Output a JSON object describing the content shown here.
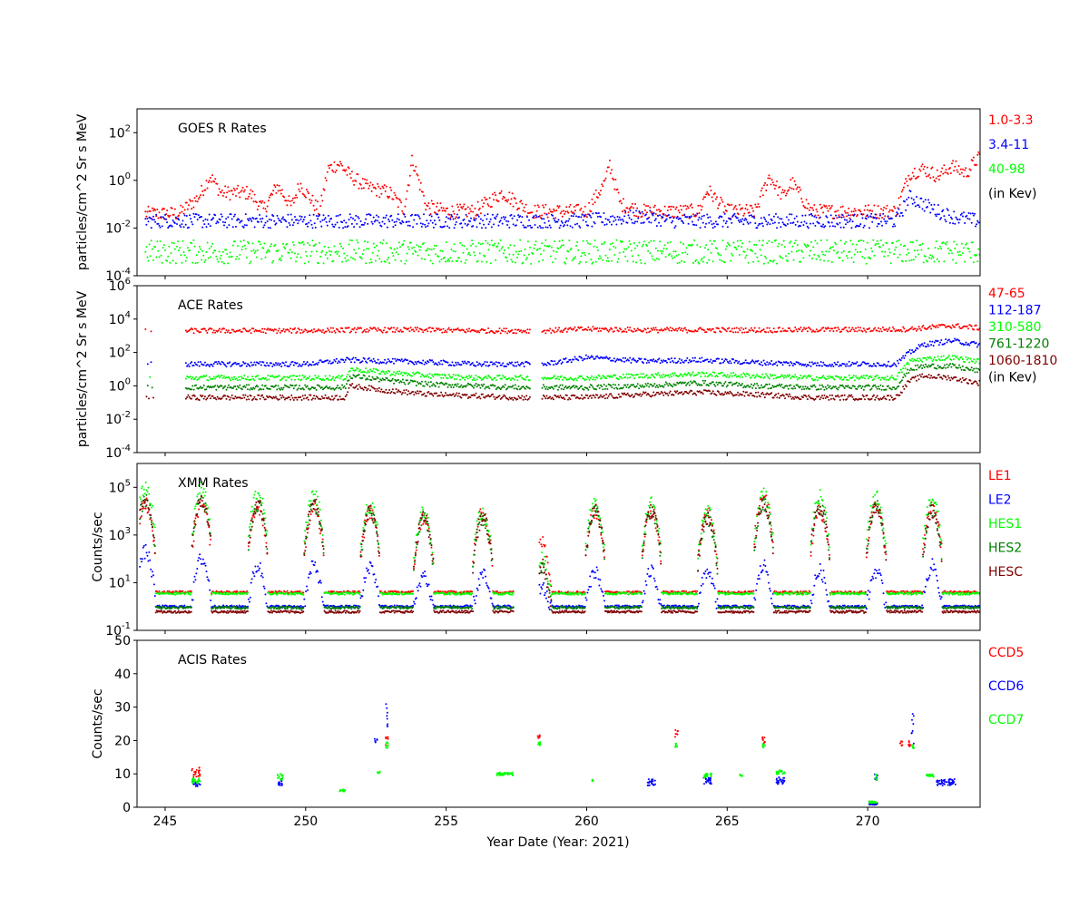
{
  "xlabel": "Year Date (Year: 2021)",
  "chart_data": [
    {
      "type": "scatter",
      "title": "GOES R Rates",
      "ylabel": "particles/cm^2 Sr s MeV",
      "yscale": "log",
      "ylim": [
        0.0001,
        1000
      ],
      "xlim": [
        244,
        274
      ],
      "xticks": [
        245,
        250,
        255,
        260,
        265,
        270
      ],
      "yticks": [
        {
          "exp": "-4",
          "v": 0.0001
        },
        {
          "exp": "-2",
          "v": 0.01
        },
        {
          "exp": "0",
          "v": 1
        },
        {
          "exp": "2",
          "v": 100
        }
      ],
      "legend_unit": "(in Kev)",
      "series": [
        {
          "name": "1.0-3.3",
          "color": "#ff0000",
          "x": [
            244.5,
            245.5,
            246.2,
            246.6,
            247,
            248,
            248.5,
            249,
            249.5,
            249.8,
            250.5,
            250.8,
            251.2,
            251.6,
            252.2,
            253,
            253.5,
            253.8,
            254.3,
            255,
            256,
            257,
            258,
            259,
            260,
            260.7,
            260.8,
            261.2,
            262,
            263,
            264,
            264.3,
            265,
            266,
            266.5,
            267,
            267.3,
            268,
            268.5,
            269,
            270,
            271,
            271.5,
            272,
            272.5,
            273,
            273.5,
            273.9
          ],
          "y": [
            0.04,
            0.04,
            0.2,
            1.5,
            0.3,
            0.3,
            0.06,
            0.6,
            0.08,
            0.7,
            0.05,
            3,
            5,
            1.5,
            0.5,
            0.3,
            0.06,
            8,
            0.08,
            0.05,
            0.05,
            0.3,
            0.05,
            0.05,
            0.05,
            1,
            6,
            0.1,
            0.05,
            0.05,
            0.05,
            0.4,
            0.05,
            0.05,
            1.5,
            0.2,
            0.8,
            0.05,
            0.05,
            0.05,
            0.05,
            0.05,
            2,
            3,
            1.5,
            4,
            2,
            8
          ]
        },
        {
          "name": "3.4-11",
          "color": "#0000ff",
          "x": [
            244.5,
            246,
            248,
            250,
            252,
            254,
            256,
            258,
            260,
            262,
            263,
            264,
            266,
            268,
            270,
            271,
            271.5,
            272,
            272.5,
            273,
            273.9
          ],
          "y": [
            0.02,
            0.02,
            0.02,
            0.02,
            0.02,
            0.02,
            0.02,
            0.02,
            0.02,
            0.03,
            0.02,
            0.02,
            0.02,
            0.02,
            0.02,
            0.02,
            0.2,
            0.1,
            0.05,
            0.03,
            0.02
          ]
        },
        {
          "name": "40-98",
          "color": "#00ff00",
          "x": [
            244.5,
            246,
            248,
            250,
            252,
            254,
            256,
            258,
            260,
            262,
            264,
            266,
            268,
            270,
            272,
            273.9
          ],
          "y": [
            0.001,
            0.001,
            0.001,
            0.001,
            0.001,
            0.001,
            0.001,
            0.001,
            0.001,
            0.001,
            0.001,
            0.001,
            0.001,
            0.001,
            0.001,
            0.001
          ]
        }
      ]
    },
    {
      "type": "scatter",
      "title": "ACE Rates",
      "ylabel": "particles/cm^2 Sr s MeV",
      "yscale": "log",
      "ylim": [
        0.0001,
        1000000
      ],
      "xlim": [
        244,
        274
      ],
      "xticks": [
        245,
        250,
        255,
        260,
        265,
        270
      ],
      "yticks": [
        {
          "exp": "-4",
          "v": 0.0001
        },
        {
          "exp": "-2",
          "v": 0.01
        },
        {
          "exp": "0",
          "v": 1
        },
        {
          "exp": "2",
          "v": 100
        },
        {
          "exp": "4",
          "v": 10000
        },
        {
          "exp": "6",
          "v": 1000000
        }
      ],
      "legend_unit": "(in Kev)",
      "series": [
        {
          "name": "47-65",
          "color": "#ff0000",
          "x": [
            244.3,
            246,
            248,
            250,
            251.5,
            253,
            254.5,
            256,
            257.5,
            258.5,
            260,
            262,
            264,
            266,
            268,
            270,
            271.5,
            272,
            273,
            273.9
          ],
          "y": [
            2000,
            2000,
            2000,
            2000,
            2200,
            2200,
            2200,
            2000,
            2000,
            2000,
            2500,
            2200,
            2200,
            2200,
            2300,
            2300,
            2500,
            3000,
            4000,
            3000
          ]
        },
        {
          "name": "112-187",
          "color": "#0000ff",
          "x": [
            244.3,
            246,
            248,
            250,
            251.5,
            253,
            254.5,
            256,
            257.5,
            258.5,
            260,
            262,
            264,
            266,
            268,
            270,
            271,
            271.5,
            272,
            273,
            273.9
          ],
          "y": [
            20,
            20,
            20,
            20,
            35,
            30,
            25,
            20,
            20,
            20,
            50,
            30,
            35,
            25,
            20,
            20,
            20,
            100,
            300,
            500,
            300
          ]
        },
        {
          "name": "310-580",
          "color": "#00ff00",
          "x": [
            244.3,
            246,
            248,
            250,
            251.4,
            251.6,
            253,
            254.5,
            256,
            257.5,
            258.5,
            260,
            262,
            264,
            266,
            268,
            270,
            271,
            271.5,
            272,
            273,
            273.9
          ],
          "y": [
            3,
            3,
            3,
            3,
            3,
            10,
            6,
            4,
            3,
            3,
            3,
            3,
            4,
            5,
            4,
            3,
            3,
            3,
            30,
            40,
            50,
            30
          ]
        },
        {
          "name": "761-1220",
          "color": "#008000",
          "x": [
            244.3,
            246,
            248,
            250,
            251.4,
            251.6,
            253,
            254.5,
            256,
            257.5,
            258.5,
            260,
            262,
            264,
            266,
            268,
            270,
            271,
            271.5,
            272,
            273,
            273.9
          ],
          "y": [
            0.8,
            0.8,
            0.8,
            0.8,
            0.8,
            4,
            2,
            1.2,
            1,
            0.8,
            0.8,
            0.8,
            1,
            1.5,
            1,
            0.8,
            0.8,
            0.8,
            10,
            15,
            15,
            8
          ]
        },
        {
          "name": "1060-1810",
          "color": "#800000",
          "x": [
            244.3,
            246,
            248,
            250,
            251.4,
            251.6,
            253,
            254.5,
            256,
            257.5,
            258.5,
            260,
            262,
            264,
            266,
            268,
            270,
            271,
            271.5,
            272,
            273,
            273.9
          ],
          "y": [
            0.2,
            0.2,
            0.2,
            0.2,
            0.2,
            1,
            0.5,
            0.3,
            0.25,
            0.2,
            0.2,
            0.2,
            0.3,
            0.4,
            0.3,
            0.2,
            0.2,
            0.2,
            2,
            4,
            3,
            1.5
          ]
        }
      ]
    },
    {
      "type": "scatter",
      "title": "XMM Rates",
      "ylabel": "Counts/sec",
      "yscale": "log",
      "ylim": [
        0.1,
        1000000
      ],
      "xlim": [
        244,
        274
      ],
      "xticks": [
        245,
        250,
        255,
        260,
        265,
        270
      ],
      "yticks": [
        {
          "exp": "-1",
          "v": 0.1
        },
        {
          "exp": "1",
          "v": 10
        },
        {
          "exp": "3",
          "v": 1000
        },
        {
          "exp": "5",
          "v": 100000
        }
      ],
      "legend_unit": "",
      "series": [
        {
          "name": "LE1",
          "color": "#ff0000",
          "peaks": [
            244.3,
            246.3,
            248.3,
            250.3,
            252.3,
            254.2,
            256.3,
            258.4,
            260.3,
            262.3,
            264.3,
            266.3,
            268.3,
            270.3,
            272.3
          ],
          "peak_y": [
            20000,
            20000,
            15000,
            15000,
            10000,
            5000,
            8000,
            500,
            10000,
            10000,
            8000,
            50000,
            10000,
            15000,
            20000
          ],
          "baseline": 4
        },
        {
          "name": "LE2",
          "color": "#0000ff",
          "peaks": [
            244.3,
            246.3,
            248.3,
            250.3,
            252.3,
            254.2,
            256.3,
            258.4,
            260.3,
            262.3,
            264.3,
            266.3,
            268.3,
            270.3,
            272.3
          ],
          "peak_y": [
            200,
            100,
            50,
            50,
            50,
            20,
            20,
            5,
            30,
            30,
            30,
            50,
            30,
            30,
            50
          ],
          "baseline": 1
        },
        {
          "name": "HES1",
          "color": "#00ff00",
          "peaks": [
            244.3,
            246.3,
            248.3,
            250.3,
            252.3,
            254.2,
            256.3,
            258.4,
            260.3,
            262.3,
            264.3,
            266.3,
            268.3,
            270.3,
            272.3
          ],
          "peak_y": [
            100000,
            100000,
            60000,
            50000,
            20000,
            8000,
            10000,
            100,
            20000,
            20000,
            10000,
            50000,
            40000,
            40000,
            30000
          ],
          "baseline": 3.5
        },
        {
          "name": "HES2",
          "color": "#008000",
          "peaks": [
            244.3,
            246.3,
            248.3,
            250.3,
            252.3,
            254.2,
            256.3,
            258.4,
            260.3,
            262.3,
            264.3,
            266.3,
            268.3,
            270.3,
            272.3
          ],
          "peak_y": [
            30000,
            30000,
            20000,
            20000,
            10000,
            5000,
            5000,
            50,
            10000,
            10000,
            5000,
            20000,
            15000,
            15000,
            10000
          ],
          "baseline": 0.9
        },
        {
          "name": "HESC",
          "color": "#800000",
          "peaks": [
            244.3,
            246.3,
            248.3,
            250.3,
            252.3,
            254.2,
            256.3,
            258.4,
            260.3,
            262.3,
            264.3,
            266.3,
            268.3,
            270.3,
            272.3
          ],
          "peak_y": [
            30000,
            30000,
            20000,
            20000,
            10000,
            5000,
            5000,
            50,
            10000,
            10000,
            5000,
            20000,
            15000,
            15000,
            10000
          ],
          "baseline": 0.6
        }
      ]
    },
    {
      "type": "scatter",
      "title": "ACIS Rates",
      "ylabel": "Counts/sec",
      "yscale": "linear",
      "ylim": [
        0,
        50
      ],
      "xlim": [
        244,
        274
      ],
      "xticks": [
        245,
        250,
        255,
        260,
        265,
        270
      ],
      "yticks": [
        {
          "label": "0",
          "v": 0
        },
        {
          "label": "10",
          "v": 10
        },
        {
          "label": "20",
          "v": 20
        },
        {
          "label": "30",
          "v": 30
        },
        {
          "label": "40",
          "v": 40
        },
        {
          "label": "50",
          "v": 50
        }
      ],
      "legend_unit": "",
      "series": [
        {
          "name": "CCD5",
          "color": "#ff0000",
          "clusters": [
            [
              246.1,
              10.5,
              0.3,
              1.5
            ],
            [
              252.9,
              20,
              0.1,
              1.5
            ],
            [
              258.3,
              21.5,
              0.1,
              1
            ],
            [
              263.2,
              22,
              0.1,
              1.2
            ],
            [
              266.3,
              20,
              0.1,
              1
            ],
            [
              271.2,
              19,
              0.1,
              1
            ],
            [
              271.5,
              19,
              0.1,
              1
            ]
          ]
        },
        {
          "name": "CCD6",
          "color": "#0000ff",
          "clusters": [
            [
              246.1,
              7,
              0.3,
              0.8
            ],
            [
              249.1,
              7.5,
              0.2,
              1
            ],
            [
              252.5,
              20,
              0.1,
              1
            ],
            [
              252.9,
              28,
              0.1,
              4
            ],
            [
              262.3,
              7.5,
              0.3,
              1
            ],
            [
              264.3,
              8,
              0.3,
              1
            ],
            [
              266.9,
              8,
              0.3,
              1
            ],
            [
              270.2,
              1,
              0.3,
              0.3
            ],
            [
              270.3,
              9,
              0.1,
              1
            ],
            [
              271.6,
              24,
              0.1,
              5
            ],
            [
              272.8,
              7.5,
              0.7,
              1
            ]
          ]
        },
        {
          "name": "CCD7",
          "color": "#00ff00",
          "clusters": [
            [
              246.1,
              8,
              0.3,
              0.8
            ],
            [
              249.1,
              9,
              0.2,
              1
            ],
            [
              251.3,
              5,
              0.2,
              0.3
            ],
            [
              252.6,
              10.5,
              0.1,
              0.4
            ],
            [
              252.9,
              18.5,
              0.1,
              1
            ],
            [
              257.1,
              10,
              0.6,
              0.5
            ],
            [
              258.3,
              19,
              0.1,
              0.6
            ],
            [
              260.2,
              8,
              0.05,
              0.2
            ],
            [
              263.2,
              18.5,
              0.1,
              0.6
            ],
            [
              264.3,
              9.5,
              0.3,
              0.8
            ],
            [
              265.5,
              9.5,
              0.1,
              0.4
            ],
            [
              266.3,
              18.5,
              0.1,
              0.8
            ],
            [
              266.9,
              10.5,
              0.3,
              0.6
            ],
            [
              270.2,
              1.5,
              0.3,
              0.3
            ],
            [
              270.3,
              9,
              0.1,
              1
            ],
            [
              271.6,
              18,
              0.1,
              0.7
            ],
            [
              272.2,
              9.5,
              0.3,
              0.4
            ]
          ]
        }
      ]
    }
  ]
}
